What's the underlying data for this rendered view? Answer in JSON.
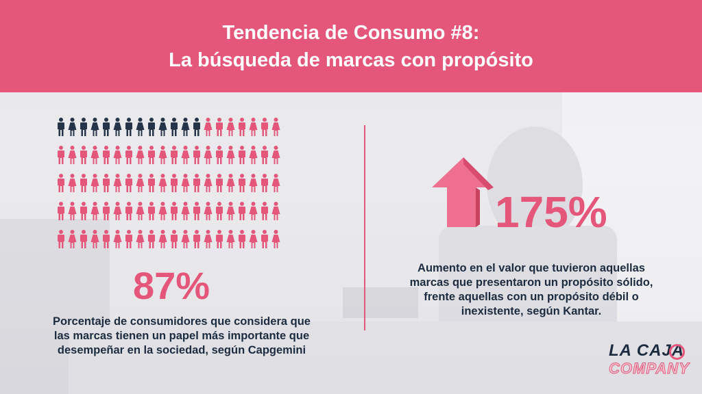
{
  "header": {
    "line1": "Tendencia de Consumo #8:",
    "line2": "La búsqueda de marcas con propósito"
  },
  "left": {
    "stat": "87%",
    "stat_fraction": 0.87,
    "description_lines": [
      "Porcentaje de consumidores que considera que",
      "las marcas tienen un papel más importante que",
      "desempeñar en la sociedad, según Capgemini"
    ]
  },
  "right": {
    "stat": "175%",
    "description_lines": [
      "Aumento en el valor que tuvieron aquellas",
      "marcas que presentaron un propósito sólido,",
      "frente aquellas con un propósito débil o",
      "inexistente, según Kantar."
    ]
  },
  "logo": {
    "line1": "LA CAJA",
    "line2": "COMPANY"
  },
  "colors": {
    "accent": "#e5577a",
    "dark": "#1c2b3f",
    "icon_dark": "#26344a"
  },
  "icons": {
    "people": "person-icon",
    "arrow": "up-arrow-icon"
  }
}
